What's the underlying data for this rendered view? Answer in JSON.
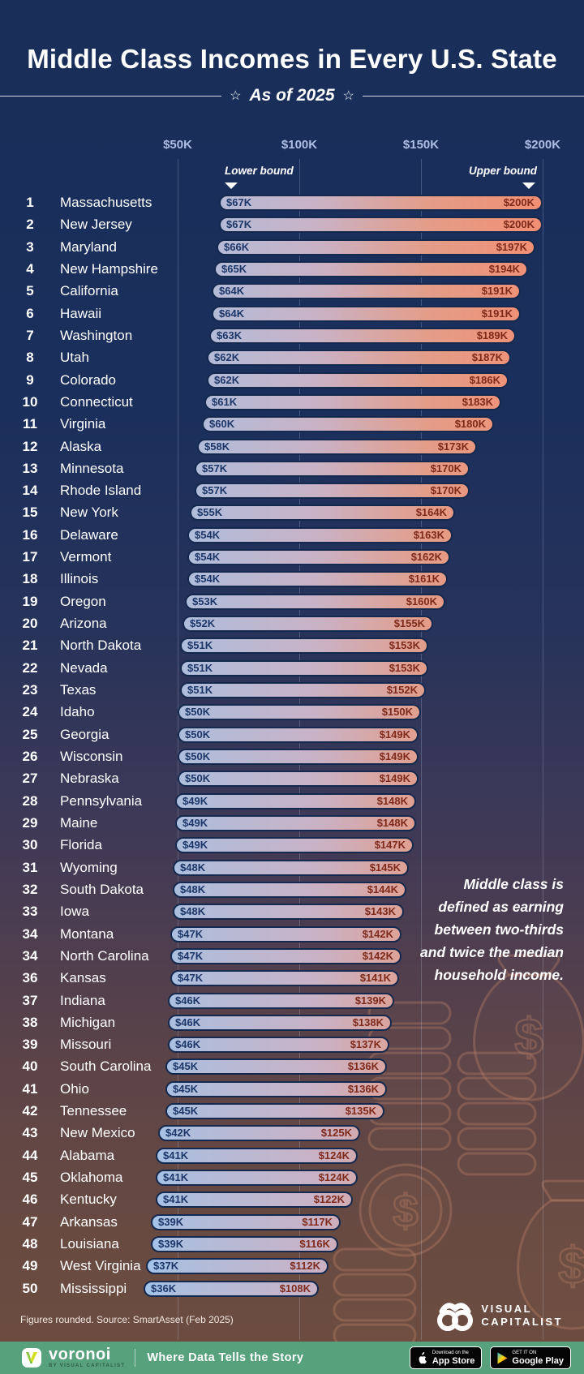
{
  "header": {
    "title": "Middle Class Incomes in Every U.S. State",
    "subtitle": "As of 2025",
    "subtitle_star": "☆"
  },
  "axis": {
    "ticks": [
      {
        "label": "$50K",
        "value_k": 50
      },
      {
        "label": "$100K",
        "value_k": 100
      },
      {
        "label": "$150K",
        "value_k": 150
      },
      {
        "label": "$200K",
        "value_k": 200
      }
    ],
    "lower_bound_label": "Lower bound",
    "upper_bound_label": "Upper bound"
  },
  "chart_data": {
    "type": "bar",
    "orientation": "horizontal-range",
    "title": "Middle Class Incomes in Every U.S. State",
    "subtitle": "As of 2025",
    "x_axis": {
      "unit": "USD thousands",
      "tick_labels": [
        "$50K",
        "$100K",
        "$150K",
        "$200K"
      ],
      "tick_values_k": [
        50,
        100,
        150,
        200
      ]
    },
    "series_labels": {
      "lower": "Lower bound",
      "upper": "Upper bound"
    },
    "rows": [
      {
        "rank": "1",
        "state": "Massachusetts",
        "lower_k": 67,
        "upper_k": 200,
        "lower_label": "$67K",
        "upper_label": "$200K"
      },
      {
        "rank": "2",
        "state": "New Jersey",
        "lower_k": 67,
        "upper_k": 200,
        "lower_label": "$67K",
        "upper_label": "$200K"
      },
      {
        "rank": "3",
        "state": "Maryland",
        "lower_k": 66,
        "upper_k": 197,
        "lower_label": "$66K",
        "upper_label": "$197K"
      },
      {
        "rank": "4",
        "state": "New Hampshire",
        "lower_k": 65,
        "upper_k": 194,
        "lower_label": "$65K",
        "upper_label": "$194K"
      },
      {
        "rank": "5",
        "state": "California",
        "lower_k": 64,
        "upper_k": 191,
        "lower_label": "$64K",
        "upper_label": "$191K"
      },
      {
        "rank": "6",
        "state": "Hawaii",
        "lower_k": 64,
        "upper_k": 191,
        "lower_label": "$64K",
        "upper_label": "$191K"
      },
      {
        "rank": "7",
        "state": "Washington",
        "lower_k": 63,
        "upper_k": 189,
        "lower_label": "$63K",
        "upper_label": "$189K"
      },
      {
        "rank": "8",
        "state": "Utah",
        "lower_k": 62,
        "upper_k": 187,
        "lower_label": "$62K",
        "upper_label": "$187K"
      },
      {
        "rank": "9",
        "state": "Colorado",
        "lower_k": 62,
        "upper_k": 186,
        "lower_label": "$62K",
        "upper_label": "$186K"
      },
      {
        "rank": "10",
        "state": "Connecticut",
        "lower_k": 61,
        "upper_k": 183,
        "lower_label": "$61K",
        "upper_label": "$183K"
      },
      {
        "rank": "11",
        "state": "Virginia",
        "lower_k": 60,
        "upper_k": 180,
        "lower_label": "$60K",
        "upper_label": "$180K"
      },
      {
        "rank": "12",
        "state": "Alaska",
        "lower_k": 58,
        "upper_k": 173,
        "lower_label": "$58K",
        "upper_label": "$173K"
      },
      {
        "rank": "13",
        "state": "Minnesota",
        "lower_k": 57,
        "upper_k": 170,
        "lower_label": "$57K",
        "upper_label": "$170K"
      },
      {
        "rank": "14",
        "state": "Rhode Island",
        "lower_k": 57,
        "upper_k": 170,
        "lower_label": "$57K",
        "upper_label": "$170K"
      },
      {
        "rank": "15",
        "state": "New York",
        "lower_k": 55,
        "upper_k": 164,
        "lower_label": "$55K",
        "upper_label": "$164K"
      },
      {
        "rank": "16",
        "state": "Delaware",
        "lower_k": 54,
        "upper_k": 163,
        "lower_label": "$54K",
        "upper_label": "$163K"
      },
      {
        "rank": "17",
        "state": "Vermont",
        "lower_k": 54,
        "upper_k": 162,
        "lower_label": "$54K",
        "upper_label": "$162K"
      },
      {
        "rank": "18",
        "state": "Illinois",
        "lower_k": 54,
        "upper_k": 161,
        "lower_label": "$54K",
        "upper_label": "$161K"
      },
      {
        "rank": "19",
        "state": "Oregon",
        "lower_k": 53,
        "upper_k": 160,
        "lower_label": "$53K",
        "upper_label": "$160K"
      },
      {
        "rank": "20",
        "state": "Arizona",
        "lower_k": 52,
        "upper_k": 155,
        "lower_label": "$52K",
        "upper_label": "$155K"
      },
      {
        "rank": "21",
        "state": "North Dakota",
        "lower_k": 51,
        "upper_k": 153,
        "lower_label": "$51K",
        "upper_label": "$153K"
      },
      {
        "rank": "22",
        "state": "Nevada",
        "lower_k": 51,
        "upper_k": 153,
        "lower_label": "$51K",
        "upper_label": "$153K"
      },
      {
        "rank": "23",
        "state": "Texas",
        "lower_k": 51,
        "upper_k": 152,
        "lower_label": "$51K",
        "upper_label": "$152K"
      },
      {
        "rank": "24",
        "state": "Idaho",
        "lower_k": 50,
        "upper_k": 150,
        "lower_label": "$50K",
        "upper_label": "$150K"
      },
      {
        "rank": "25",
        "state": "Georgia",
        "lower_k": 50,
        "upper_k": 149,
        "lower_label": "$50K",
        "upper_label": "$149K"
      },
      {
        "rank": "26",
        "state": "Wisconsin",
        "lower_k": 50,
        "upper_k": 149,
        "lower_label": "$50K",
        "upper_label": "$149K"
      },
      {
        "rank": "27",
        "state": "Nebraska",
        "lower_k": 50,
        "upper_k": 149,
        "lower_label": "$50K",
        "upper_label": "$149K"
      },
      {
        "rank": "28",
        "state": "Pennsylvania",
        "lower_k": 49,
        "upper_k": 148,
        "lower_label": "$49K",
        "upper_label": "$148K"
      },
      {
        "rank": "29",
        "state": "Maine",
        "lower_k": 49,
        "upper_k": 148,
        "lower_label": "$49K",
        "upper_label": "$148K"
      },
      {
        "rank": "30",
        "state": "Florida",
        "lower_k": 49,
        "upper_k": 147,
        "lower_label": "$49K",
        "upper_label": "$147K"
      },
      {
        "rank": "31",
        "state": "Wyoming",
        "lower_k": 48,
        "upper_k": 145,
        "lower_label": "$48K",
        "upper_label": "$145K"
      },
      {
        "rank": "32",
        "state": "South Dakota",
        "lower_k": 48,
        "upper_k": 144,
        "lower_label": "$48K",
        "upper_label": "$144K"
      },
      {
        "rank": "33",
        "state": "Iowa",
        "lower_k": 48,
        "upper_k": 143,
        "lower_label": "$48K",
        "upper_label": "$143K"
      },
      {
        "rank": "34",
        "state": "Montana",
        "lower_k": 47,
        "upper_k": 142,
        "lower_label": "$47K",
        "upper_label": "$142K"
      },
      {
        "rank": "34",
        "state": "North Carolina",
        "lower_k": 47,
        "upper_k": 142,
        "lower_label": "$47K",
        "upper_label": "$142K"
      },
      {
        "rank": "36",
        "state": "Kansas",
        "lower_k": 47,
        "upper_k": 141,
        "lower_label": "$47K",
        "upper_label": "$141K"
      },
      {
        "rank": "37",
        "state": "Indiana",
        "lower_k": 46,
        "upper_k": 139,
        "lower_label": "$46K",
        "upper_label": "$139K"
      },
      {
        "rank": "38",
        "state": "Michigan",
        "lower_k": 46,
        "upper_k": 138,
        "lower_label": "$46K",
        "upper_label": "$138K"
      },
      {
        "rank": "39",
        "state": "Missouri",
        "lower_k": 46,
        "upper_k": 137,
        "lower_label": "$46K",
        "upper_label": "$137K"
      },
      {
        "rank": "40",
        "state": "South Carolina",
        "lower_k": 45,
        "upper_k": 136,
        "lower_label": "$45K",
        "upper_label": "$136K"
      },
      {
        "rank": "41",
        "state": "Ohio",
        "lower_k": 45,
        "upper_k": 136,
        "lower_label": "$45K",
        "upper_label": "$136K"
      },
      {
        "rank": "42",
        "state": "Tennessee",
        "lower_k": 45,
        "upper_k": 135,
        "lower_label": "$45K",
        "upper_label": "$135K"
      },
      {
        "rank": "43",
        "state": "New Mexico",
        "lower_k": 42,
        "upper_k": 125,
        "lower_label": "$42K",
        "upper_label": "$125K"
      },
      {
        "rank": "44",
        "state": "Alabama",
        "lower_k": 41,
        "upper_k": 124,
        "lower_label": "$41K",
        "upper_label": "$124K"
      },
      {
        "rank": "45",
        "state": "Oklahoma",
        "lower_k": 41,
        "upper_k": 124,
        "lower_label": "$41K",
        "upper_label": "$124K"
      },
      {
        "rank": "46",
        "state": "Kentucky",
        "lower_k": 41,
        "upper_k": 122,
        "lower_label": "$41K",
        "upper_label": "$122K"
      },
      {
        "rank": "47",
        "state": "Arkansas",
        "lower_k": 39,
        "upper_k": 117,
        "lower_label": "$39K",
        "upper_label": "$117K"
      },
      {
        "rank": "48",
        "state": "Louisiana",
        "lower_k": 39,
        "upper_k": 116,
        "lower_label": "$39K",
        "upper_label": "$116K"
      },
      {
        "rank": "49",
        "state": "West Virginia",
        "lower_k": 37,
        "upper_k": 112,
        "lower_label": "$37K",
        "upper_label": "$112K"
      },
      {
        "rank": "50",
        "state": "Mississippi",
        "lower_k": 36,
        "upper_k": 108,
        "lower_label": "$36K",
        "upper_label": "$108K"
      }
    ]
  },
  "annotation": {
    "text": "Middle class is defined as earning between two-thirds and twice the median household income.",
    "lines": [
      "Middle class is",
      "defined as earning",
      "between two-thirds",
      "and twice the median",
      "household income."
    ]
  },
  "footer": {
    "source": "Figures rounded. Source: SmartAsset (Feb 2025)",
    "vc_logo_line1": "VISUAL",
    "vc_logo_line2": "CAPITALIST",
    "voronoi_wordmark": "voronoi",
    "voronoi_sub": "BY VISUAL CAPITALIST",
    "tagline": "Where Data Tells the Story",
    "app_store_badge": {
      "line1": "Download on the",
      "line2": "App Store"
    },
    "google_play_badge": {
      "line1": "GET IT ON",
      "line2": "Google Play"
    }
  },
  "colors": {
    "background_top": "#1a2e5a",
    "background_bottom": "#6d4d40",
    "bar_gradient_left": "#9ec7f2",
    "bar_gradient_right": "#f28e73",
    "bar_border": "#15294e",
    "lower_label_color": "#1c3668",
    "upper_label_color": "#7e2a1b",
    "axis_label_color": "#aebfe4",
    "footer_green": "#58a17d"
  }
}
